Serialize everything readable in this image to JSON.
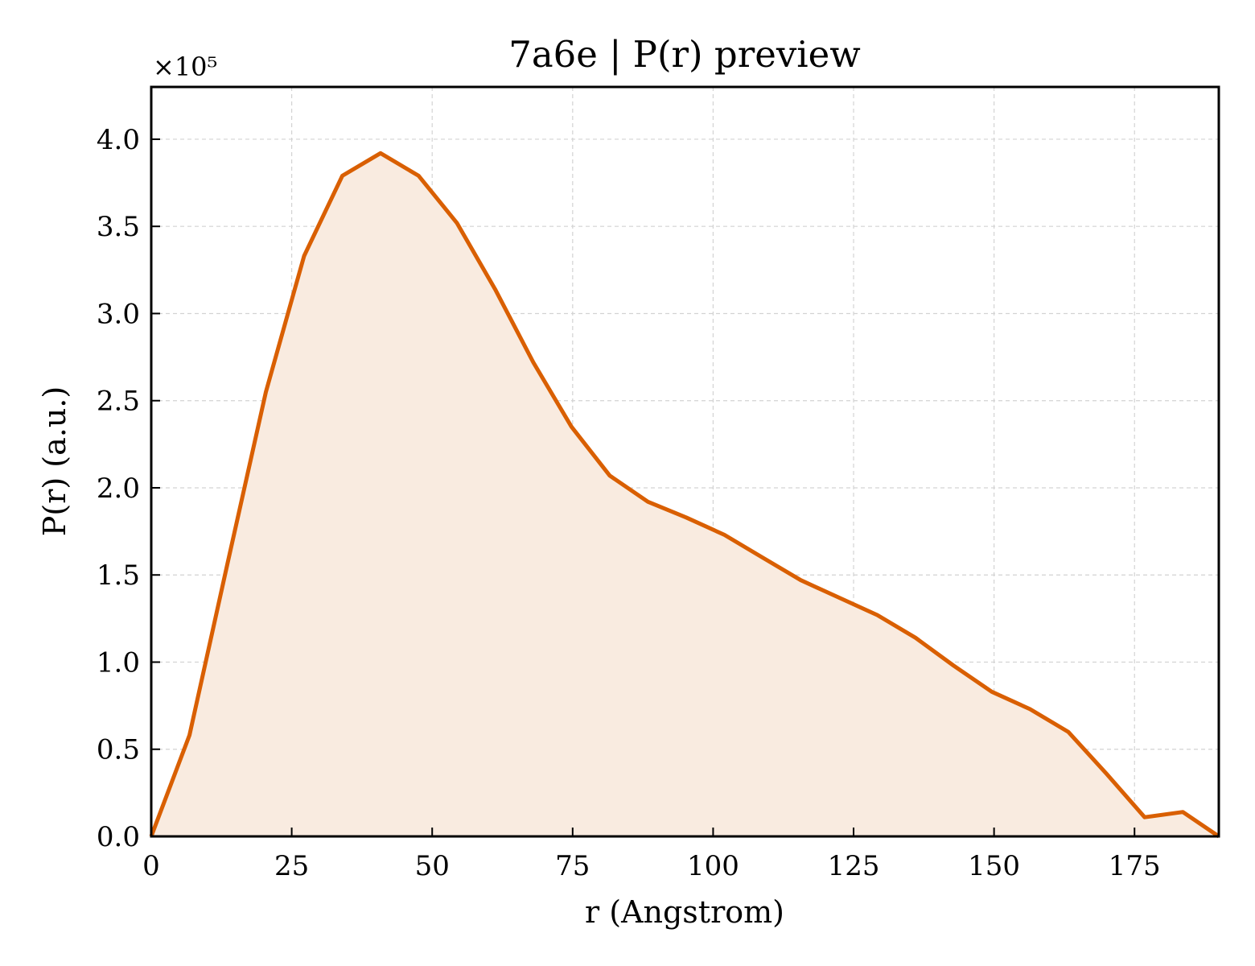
{
  "chart_data": {
    "type": "area",
    "title": "7a6e | P(r) preview",
    "xlabel": "r (Angstrom)",
    "ylabel": "P(r) (a.u.)",
    "y_offset_label": "×10⁵",
    "xlim": [
      0,
      190
    ],
    "ylim": [
      0,
      4.3
    ],
    "x_ticks": [
      0,
      25,
      50,
      75,
      100,
      125,
      150,
      175
    ],
    "x_tick_labels": [
      "0",
      "25",
      "50",
      "75",
      "100",
      "125",
      "150",
      "175"
    ],
    "y_ticks": [
      0,
      0.5,
      1.0,
      1.5,
      2.0,
      2.5,
      3.0,
      3.5,
      4.0
    ],
    "y_tick_labels": [
      "0.0",
      "0.5",
      "1.0",
      "1.5",
      "2.0",
      "2.5",
      "3.0",
      "3.5",
      "4.0"
    ],
    "grid": true,
    "line_color": "#d95f02",
    "fill_color": "#f9ebe0",
    "series": [
      {
        "x": [
          0,
          6.8,
          13.6,
          20.4,
          27.2,
          34.0,
          40.8,
          47.6,
          54.4,
          61.2,
          68.0,
          74.8,
          81.6,
          88.4,
          95.2,
          102.0,
          108.8,
          115.6,
          122.4,
          129.2,
          136.0,
          142.8,
          149.6,
          156.4,
          163.2,
          170.0,
          176.8,
          183.6,
          190.0
        ],
        "values": [
          0.0,
          0.58,
          1.57,
          2.55,
          3.33,
          3.79,
          3.92,
          3.79,
          3.52,
          3.14,
          2.72,
          2.35,
          2.07,
          1.92,
          1.83,
          1.73,
          1.6,
          1.47,
          1.37,
          1.27,
          1.14,
          0.98,
          0.83,
          0.73,
          0.6,
          0.36,
          0.11,
          0.14,
          0.0
        ]
      }
    ]
  }
}
